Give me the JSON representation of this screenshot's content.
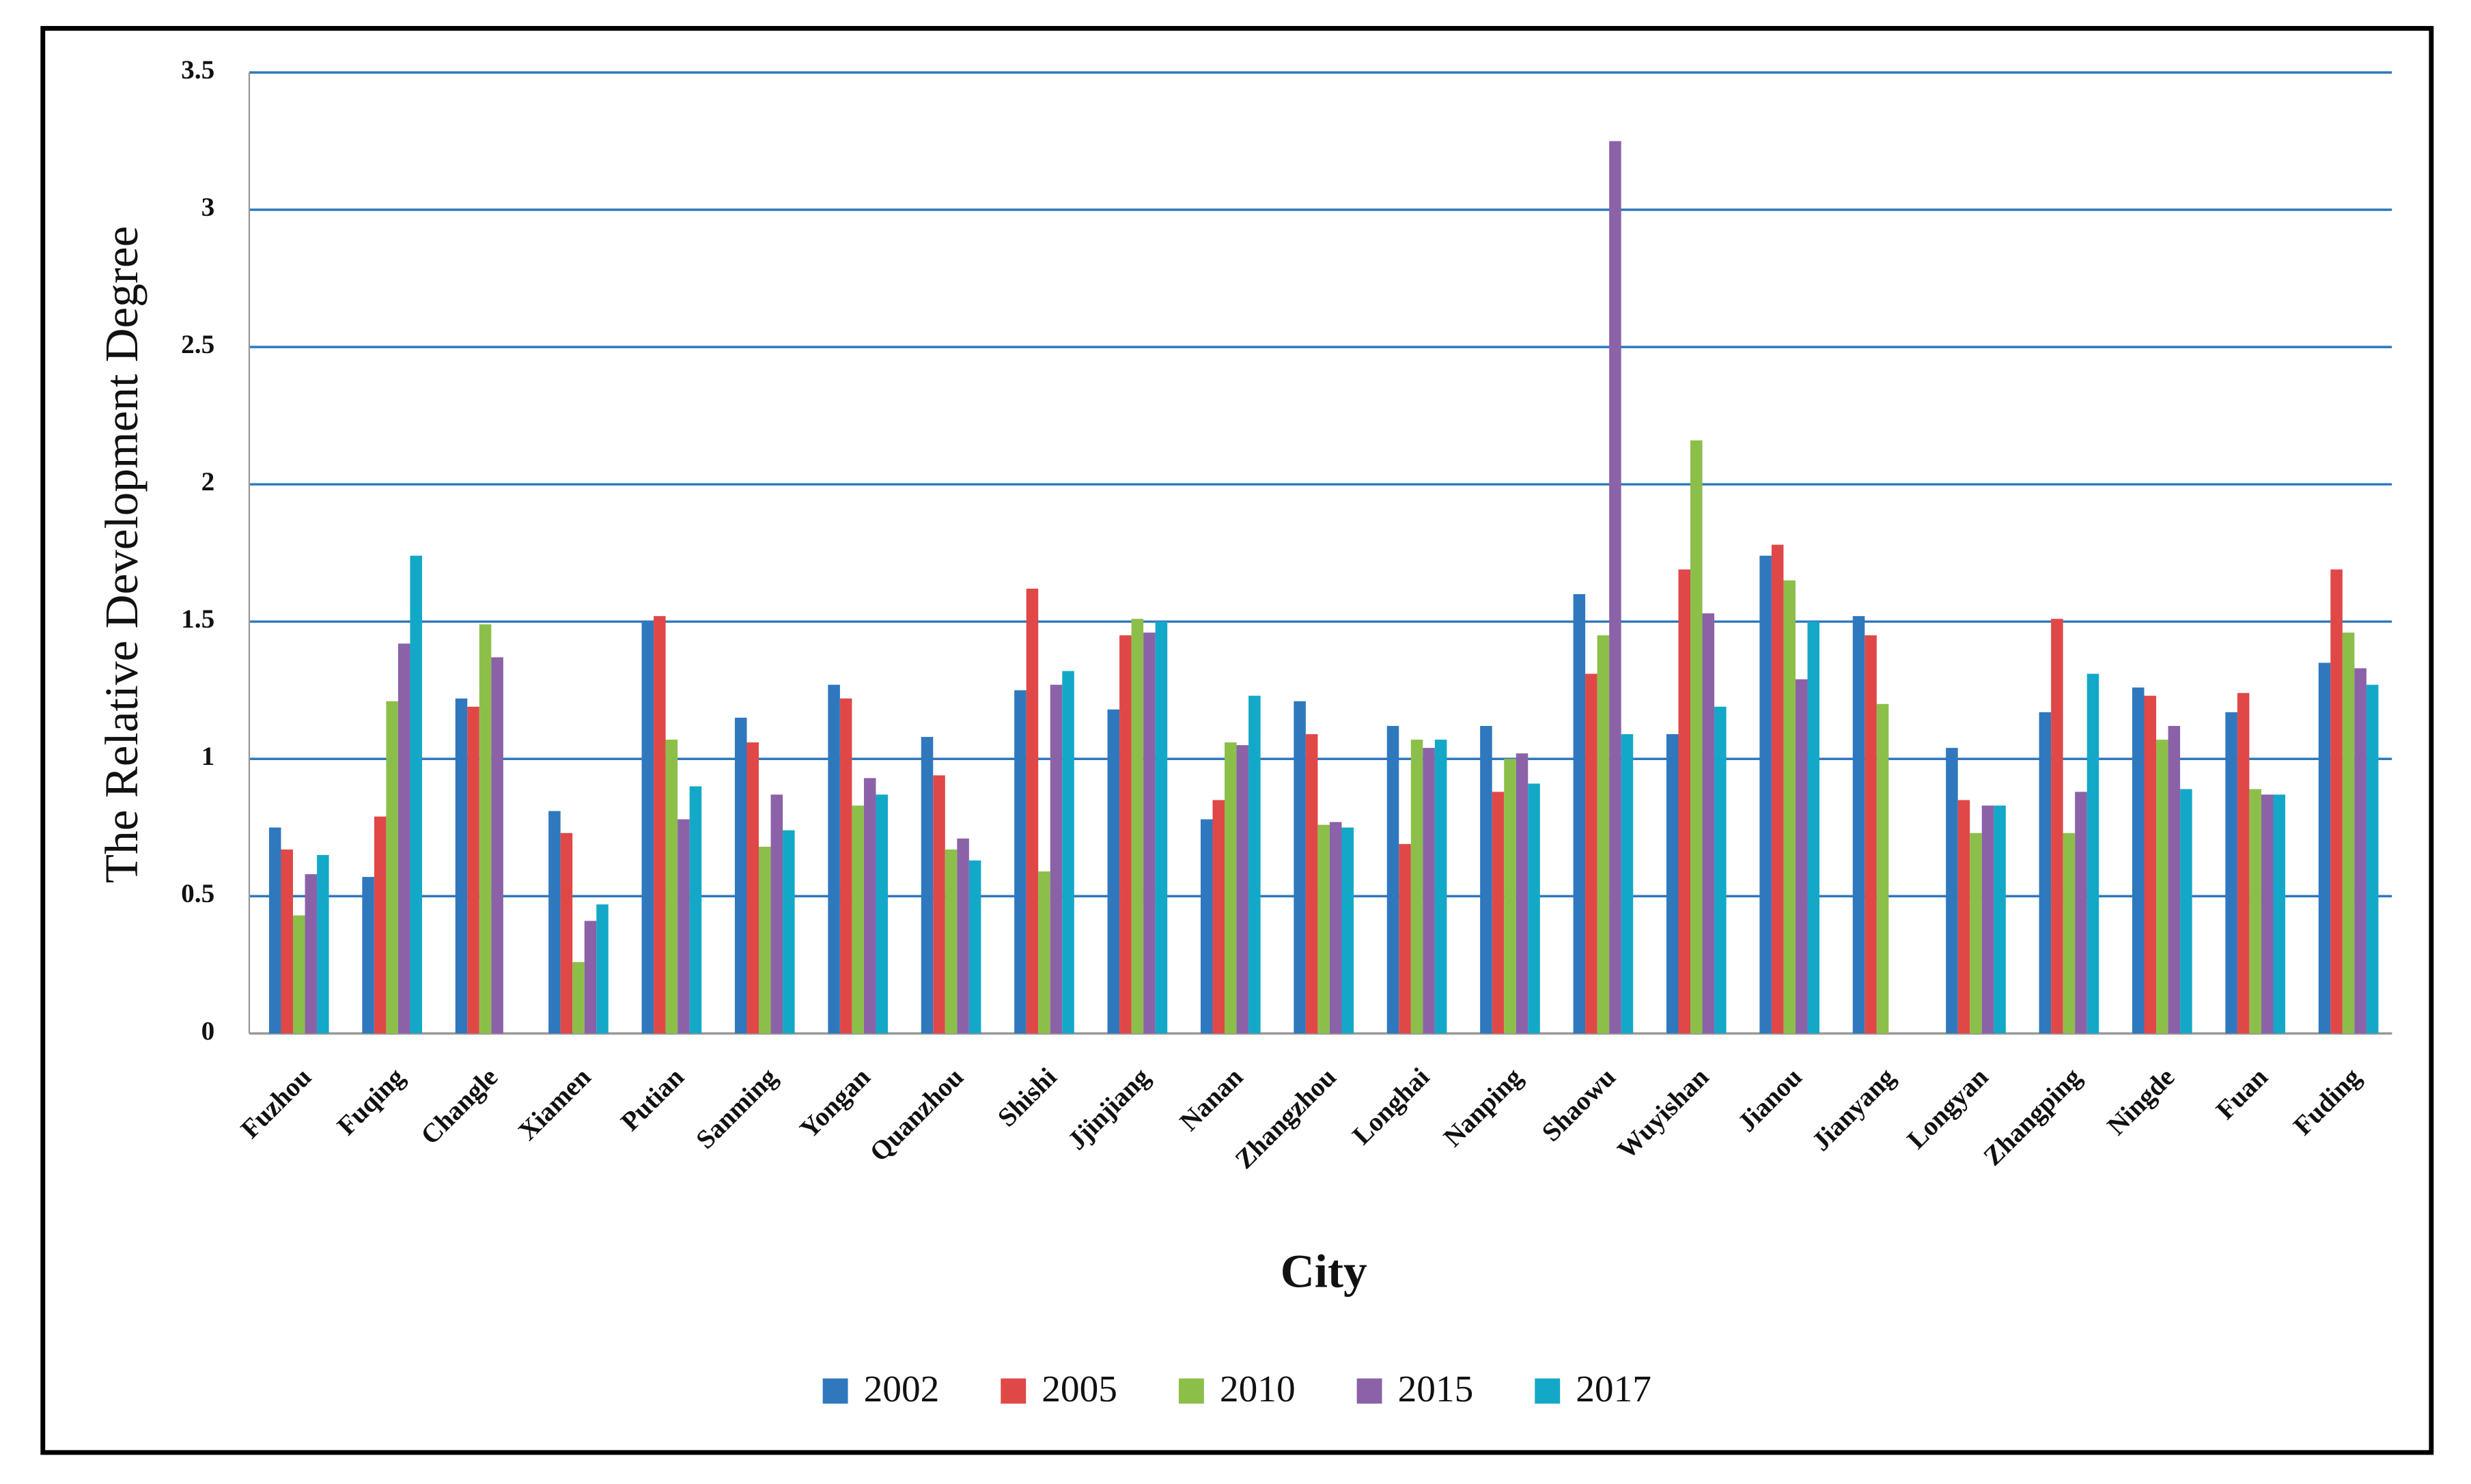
{
  "chart_data": {
    "type": "bar",
    "x_label": "City",
    "y_label": "The Relative Development  Degree",
    "categories": [
      "Fuzhou",
      "Fuqing",
      "Changle",
      "Xiamen",
      "Putian",
      "Sanming",
      "Yongan",
      "Quanzhou",
      "Shishi",
      "Jjinjiang",
      "Nanan",
      "Zhangzhou",
      "Longhai",
      "Nanping",
      "Shaowu",
      "Wuyishan",
      "Jianou",
      "Jianyang",
      "Longyan",
      "Zhangping",
      "Ningde",
      "Fuan",
      "Fuding"
    ],
    "series": [
      {
        "name": "2002",
        "color": "#2f78bd",
        "values": [
          0.75,
          0.57,
          1.22,
          0.81,
          1.5,
          1.15,
          1.27,
          1.08,
          1.25,
          1.18,
          0.78,
          1.21,
          1.12,
          1.12,
          1.6,
          1.09,
          1.74,
          1.52,
          1.04,
          1.17,
          1.26,
          1.17,
          1.35
        ]
      },
      {
        "name": "2005",
        "color": "#e04848",
        "values": [
          0.67,
          0.79,
          1.19,
          0.73,
          1.52,
          1.06,
          1.22,
          0.94,
          1.62,
          1.45,
          0.85,
          1.09,
          0.69,
          0.88,
          1.31,
          1.69,
          1.78,
          1.45,
          0.85,
          1.51,
          1.23,
          1.24,
          1.69
        ]
      },
      {
        "name": "2010",
        "color": "#8cbf4a",
        "values": [
          0.43,
          1.21,
          1.49,
          0.26,
          1.07,
          0.68,
          0.83,
          0.67,
          0.59,
          1.51,
          1.06,
          0.76,
          1.07,
          1.0,
          1.45,
          2.16,
          1.65,
          1.2,
          0.73,
          0.73,
          1.07,
          0.89,
          1.46
        ]
      },
      {
        "name": "2015",
        "color": "#8b62a8",
        "values": [
          0.58,
          1.42,
          1.37,
          0.41,
          0.78,
          0.87,
          0.93,
          0.71,
          1.27,
          1.46,
          1.05,
          0.77,
          1.04,
          1.02,
          3.25,
          1.53,
          1.29,
          null,
          0.83,
          0.88,
          1.12,
          0.87,
          1.33
        ]
      },
      {
        "name": "2017",
        "color": "#14a8c8",
        "values": [
          0.65,
          1.74,
          null,
          0.47,
          0.9,
          0.74,
          0.87,
          0.63,
          1.32,
          1.5,
          1.23,
          0.75,
          1.07,
          0.91,
          1.09,
          1.19,
          1.5,
          null,
          0.83,
          1.31,
          0.89,
          0.87,
          1.27
        ]
      }
    ],
    "ylim": [
      0,
      3.5
    ],
    "yticks": [
      0,
      0.5,
      1,
      1.5,
      2,
      2.5,
      3,
      3.5
    ],
    "grid": true,
    "grid_color": "#2f78bd",
    "legend": "bottom"
  }
}
